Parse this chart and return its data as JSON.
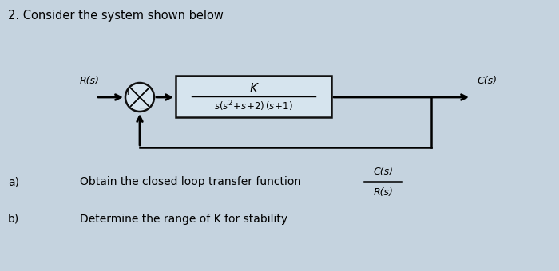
{
  "title": "2. Consider the system shown below",
  "title_fontsize": 10.5,
  "bg_color": "#c5d3df",
  "text_color": "#000000",
  "block_facecolor": "#d6e4ee",
  "block_edgecolor": "#111111",
  "sumjunction_color": "#d6e4ee",
  "transfer_func_num": "K",
  "label_Rs_left": "R(s)",
  "label_Cs_right": "C(s)",
  "label_plus": "+",
  "label_minus": "−",
  "part_a_label": "a)",
  "part_a_text": "Obtain the closed loop transfer function",
  "part_a_frac_num": "C(s)",
  "part_a_frac_den": "R(s)",
  "part_b_label": "b)",
  "part_b_text": "Determine the range of K for stability"
}
